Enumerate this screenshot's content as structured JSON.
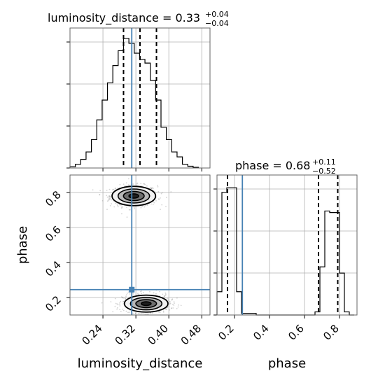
{
  "colors": {
    "truth": "#4682b4",
    "hist": "#000000",
    "grid": "#b0b0b0",
    "scatter": "#888888"
  },
  "chart_data": {
    "type": "corner",
    "parameters": [
      "luminosity_distance",
      "phase"
    ],
    "titles": [
      {
        "label": "luminosity_distance = 0.33",
        "plus": "+0.04",
        "minus": "−0.04"
      },
      {
        "label": "phase = 0.68",
        "plus": "+0.11",
        "minus": "−0.52"
      }
    ],
    "xlabel": [
      "luminosity_distance",
      "phase"
    ],
    "ylabel": "phase",
    "truth": {
      "luminosity_distance": 0.31,
      "phase": 0.245
    },
    "dist_ticks": [
      0.24,
      0.32,
      0.4,
      0.48
    ],
    "dist_tick_labels": [
      "0.24",
      "0.32",
      "0.40",
      "0.48"
    ],
    "phase_ticks": [
      0.2,
      0.4,
      0.6,
      0.8
    ],
    "phase_tick_labels": [
      "0.2",
      "0.4",
      "0.6",
      "0.8"
    ],
    "dist_range": [
      0.16,
      0.5
    ],
    "phase_range": [
      0.1,
      0.9
    ],
    "grid": true,
    "dist_hist": {
      "edges": [
        0.16,
        0.173,
        0.186,
        0.199,
        0.212,
        0.225,
        0.238,
        0.251,
        0.264,
        0.277,
        0.29,
        0.303,
        0.316,
        0.329,
        0.342,
        0.355,
        0.368,
        0.381,
        0.394,
        0.407,
        0.42,
        0.433,
        0.446,
        0.459,
        0.472
      ],
      "counts": [
        0.5,
        1.5,
        3.5,
        6.5,
        11.5,
        19.5,
        27.5,
        34.5,
        41.5,
        47.5,
        52.5,
        50.5,
        46.5,
        44.0,
        42.5,
        35.5,
        27.5,
        16.5,
        11.5,
        6.5,
        4.5,
        1.5,
        0.7,
        0.3
      ],
      "quantiles": [
        0.29,
        0.33,
        0.37
      ]
    },
    "phase_hist": {
      "edges": [
        0.1,
        0.128,
        0.156,
        0.184,
        0.212,
        0.24,
        0.268,
        0.296,
        0.324,
        0.352,
        0.38,
        0.408,
        0.436,
        0.464,
        0.492,
        0.52,
        0.548,
        0.576,
        0.604,
        0.632,
        0.66,
        0.688,
        0.716,
        0.744,
        0.772,
        0.8,
        0.828,
        0.856,
        0.884
      ],
      "counts": [
        15,
        79,
        82,
        82,
        15,
        1,
        1,
        1,
        0,
        0,
        0,
        0,
        0,
        0,
        0,
        0,
        0,
        0,
        0,
        0,
        2,
        31,
        67,
        66,
        66,
        27,
        2,
        0
      ],
      "quantiles": [
        0.16,
        0.68,
        0.79
      ]
    },
    "modes": [
      {
        "dist": 0.315,
        "phase": 0.78,
        "sd_dist": 0.022,
        "sd_phase": 0.025
      },
      {
        "dist": 0.345,
        "phase": 0.165,
        "sd_dist": 0.022,
        "sd_phase": 0.022
      }
    ]
  }
}
